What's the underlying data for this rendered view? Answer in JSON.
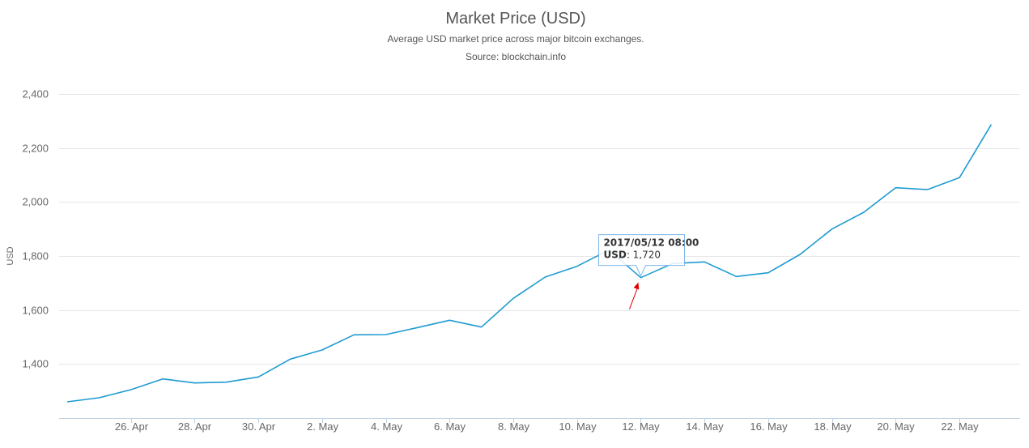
{
  "chart_data": {
    "type": "line",
    "title": "Market Price (USD)",
    "subtitle": "Average USD market price across major bitcoin exchanges.",
    "source": "Source: blockchain.info",
    "ylabel": "USD",
    "xlabel": "",
    "ylim": [
      1200,
      2400
    ],
    "yticks": [
      1400,
      1600,
      1800,
      2000,
      2200,
      2400
    ],
    "ytick_labels": [
      "1,400",
      "1,600",
      "1,800",
      "2,000",
      "2,200",
      "2,400"
    ],
    "xlim": [
      "2017-04-24",
      "2017-05-24"
    ],
    "xticks": [
      "2017-04-26",
      "2017-04-28",
      "2017-04-30",
      "2017-05-02",
      "2017-05-04",
      "2017-05-06",
      "2017-05-08",
      "2017-05-10",
      "2017-05-12",
      "2017-05-14",
      "2017-05-16",
      "2017-05-18",
      "2017-05-20",
      "2017-05-22"
    ],
    "xtick_labels": [
      "26. Apr",
      "28. Apr",
      "30. Apr",
      "2. May",
      "4. May",
      "6. May",
      "8. May",
      "10. May",
      "12. May",
      "14. May",
      "16. May",
      "18. May",
      "20. May",
      "22. May"
    ],
    "grid": true,
    "legend": "none",
    "colors": {
      "line": "#1f9bd1",
      "grid": "#e6e6e6",
      "axis": "#c0d0e0",
      "tooltip_border": "#7cb5ec",
      "arrow": "#e00000"
    },
    "series": [
      {
        "x": [
          "2017-04-24",
          "2017-04-25",
          "2017-04-26",
          "2017-04-27",
          "2017-04-28",
          "2017-04-29",
          "2017-04-30",
          "2017-05-01",
          "2017-05-02",
          "2017-05-03",
          "2017-05-04",
          "2017-05-05",
          "2017-05-06",
          "2017-05-07",
          "2017-05-08",
          "2017-05-09",
          "2017-05-10",
          "2017-05-11",
          "2017-05-12",
          "2017-05-13",
          "2017-05-14",
          "2017-05-15",
          "2017-05-16",
          "2017-05-17",
          "2017-05-18",
          "2017-05-19",
          "2017-05-20",
          "2017-05-21",
          "2017-05-22",
          "2017-05-23"
        ],
        "values": [
          1260,
          1275,
          1305,
          1345,
          1330,
          1333,
          1352,
          1418,
          1452,
          1508,
          1509,
          1535,
          1562,
          1537,
          1643,
          1722,
          1762,
          1822,
          1720,
          1772,
          1778,
          1724,
          1738,
          1806,
          1900,
          1962,
          2053,
          2046,
          2090,
          2287
        ]
      }
    ],
    "tooltip": {
      "date": "2017/05/12 08:00",
      "series_label": "USD",
      "value_text": "1,720",
      "point_x": "2017-05-12",
      "point_value": 1720
    }
  }
}
